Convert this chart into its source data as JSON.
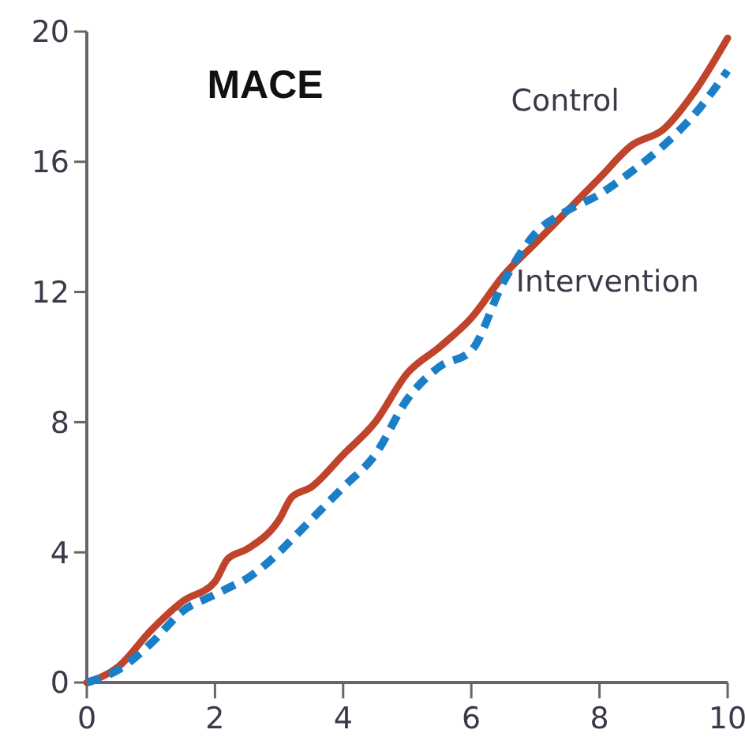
{
  "chart_data": {
    "type": "line",
    "title": "MACE",
    "x": [
      0,
      0.5,
      1,
      1.5,
      2,
      2.2,
      2.5,
      3,
      3.2,
      3.5,
      4,
      4.5,
      5,
      5.5,
      6,
      6.5,
      7,
      7.5,
      8,
      8.5,
      9,
      9.5,
      10
    ],
    "series": [
      {
        "name": "Control",
        "color": "#c0432b",
        "line_style": "solid",
        "values": [
          0,
          0.5,
          1.6,
          2.5,
          3.1,
          3.8,
          4.1,
          5,
          5.7,
          6,
          7,
          8,
          9.5,
          10.3,
          11.2,
          12.5,
          13.5,
          14.5,
          15.5,
          16.5,
          17,
          18.2,
          19.8
        ]
      },
      {
        "name": "Intervention",
        "color": "#1b7fc8",
        "line_style": "dashed",
        "values": [
          0,
          0.4,
          1.2,
          2.2,
          2.7,
          2.9,
          3.2,
          4,
          4.4,
          5,
          6,
          7,
          8.7,
          9.7,
          10.2,
          12.3,
          13.8,
          14.5,
          15,
          15.7,
          16.5,
          17.5,
          18.8
        ]
      }
    ],
    "xlim": [
      0,
      10
    ],
    "xticks": [
      0,
      2,
      4,
      6,
      8,
      10
    ],
    "ylim": [
      0,
      20
    ],
    "yticks": [
      0,
      4,
      8,
      12,
      16,
      20
    ],
    "grid": false,
    "legend": false,
    "marker": "none"
  }
}
